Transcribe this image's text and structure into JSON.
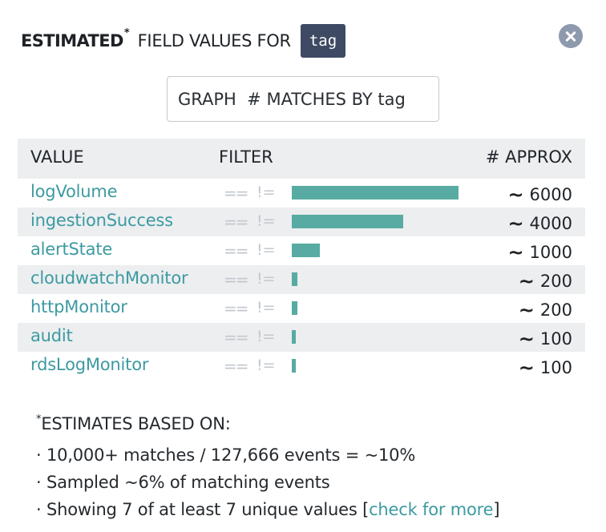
{
  "header": {
    "title_bold": "ESTIMATED",
    "title_star": "*",
    "title_rest": "FIELD VALUES FOR",
    "field_name": "tag",
    "close_icon": "close-circle-icon"
  },
  "graph_button": {
    "label": "GRAPH  # MATCHES BY tag"
  },
  "table": {
    "columns": {
      "value": "VALUE",
      "filter": "FILTER",
      "approx": "# APPROX"
    },
    "filter_eq_symbol": "==",
    "filter_neq_symbol": "!=",
    "approx_prefix": "~",
    "bar_color": "#58aba2",
    "link_color": "#3d9aa1",
    "max_count": 6000,
    "rows": [
      {
        "value": "logVolume",
        "approx": "6000",
        "count": 6000
      },
      {
        "value": "ingestionSuccess",
        "approx": "4000",
        "count": 4000
      },
      {
        "value": "alertState",
        "approx": "1000",
        "count": 1000
      },
      {
        "value": "cloudwatchMonitor",
        "approx": "200",
        "count": 200
      },
      {
        "value": "httpMonitor",
        "approx": "200",
        "count": 200
      },
      {
        "value": "audit",
        "approx": "100",
        "count": 100
      },
      {
        "value": "rdsLogMonitor",
        "approx": "100",
        "count": 100
      }
    ]
  },
  "notes": {
    "star": "*",
    "heading": "ESTIMATES BASED ON:",
    "line1": "· 10,000+ matches / 127,666 events = ~10%",
    "line2": "· Sampled ~6% of matching events",
    "line3_prefix": "· Showing 7 of at least 7 unique values [",
    "line3_link": "check for more",
    "line3_suffix": "]"
  }
}
